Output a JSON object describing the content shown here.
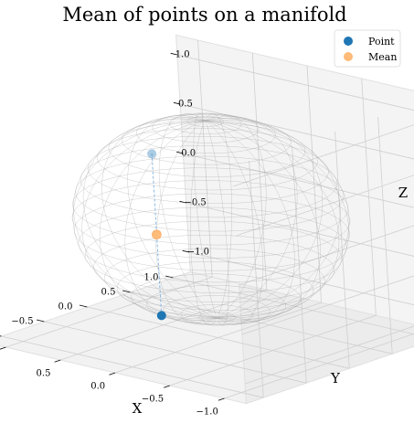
{
  "chart_data": {
    "type": "scatter",
    "title": "Mean of points on a manifold",
    "xlabel": "X",
    "ylabel": "Y",
    "zlabel": "Z",
    "xlim": [
      -1.2,
      1.2
    ],
    "ylim": [
      -1.2,
      1.2
    ],
    "zlim": [
      -1.2,
      1.2
    ],
    "x_ticks": [
      "−1.0",
      "−0.5",
      "0.0",
      "0.5",
      "1.0"
    ],
    "y_ticks": [
      "−1.0",
      "−0.5",
      "0.0",
      "0.5",
      "1.0"
    ],
    "z_ticks": [
      "−1.0",
      "−0.5",
      "0.0",
      "0.5",
      "1.0"
    ],
    "grid": true,
    "surface": "unit sphere wireframe",
    "legend_position": "top-right",
    "series": [
      {
        "name": "Point",
        "color": "#1f77b4",
        "points": [
          {
            "x": 0.05,
            "y": -0.57,
            "z": -0.82
          },
          {
            "x": 0.05,
            "y": -0.57,
            "z": 0.82
          }
        ]
      },
      {
        "name": "Mean",
        "color": "#ffbb78",
        "points": [
          {
            "x": 0.05,
            "y": -0.57,
            "z": 0.0
          }
        ]
      }
    ],
    "connector": {
      "color": "#6fa8dc",
      "style": "dashed"
    }
  }
}
